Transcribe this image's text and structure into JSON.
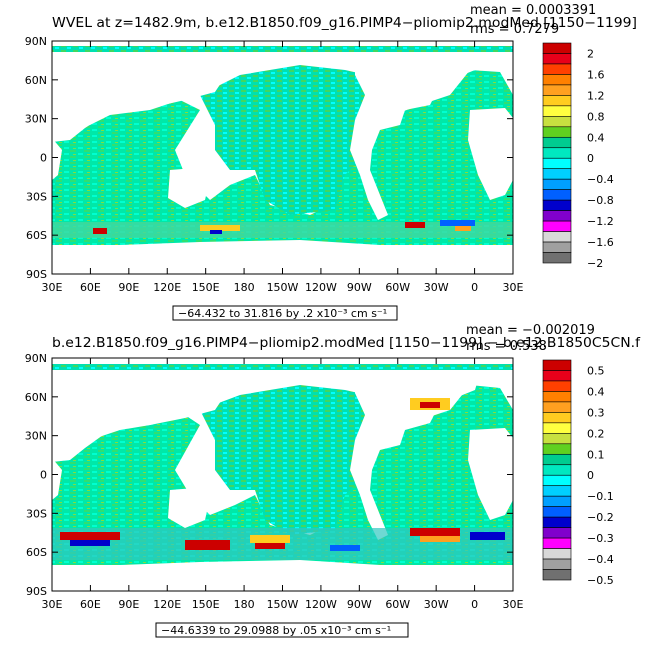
{
  "chart_data": [
    {
      "type": "heatmap",
      "title": "WVEL at z=1482.9m, b.e12.B1850.f09_g16.PIMP4−pliomip2.modMed [1150−1199]",
      "stats": {
        "mean": "mean = 0.0003391",
        "rms": "rms = 0.7279"
      },
      "x_ticks": [
        "30E",
        "60E",
        "90E",
        "120E",
        "150E",
        "180",
        "150W",
        "120W",
        "90W",
        "60W",
        "30W",
        "0",
        "30E"
      ],
      "y_ticks": [
        "90N",
        "60N",
        "30N",
        "0",
        "30S",
        "60S",
        "90S"
      ],
      "range_label": "−64.432 to 31.816 by .2 x10⁻³ cm s⁻¹",
      "colorbar": {
        "labels": [
          "2",
          "1.6",
          "1.2",
          "0.8",
          "0.4",
          "0",
          "−0.4",
          "−0.8",
          "−1.2",
          "−1.6",
          "−2"
        ],
        "colors": [
          "#cc0000",
          "#e8001a",
          "#ff4000",
          "#ff8000",
          "#ffa020",
          "#ffcc20",
          "#ffff40",
          "#c8e040",
          "#60d020",
          "#00cc90",
          "#00e8c0",
          "#00ffff",
          "#00d0ff",
          "#00a0ff",
          "#0060ff",
          "#0000cc",
          "#8000cc",
          "#ff00ff",
          "#d8d8d8",
          "#a0a0a0",
          "#707070"
        ]
      }
    },
    {
      "type": "heatmap",
      "title": "b.e12.B1850.f09_g16.PIMP4−pliomip2.modMed [1150−1199] − b.e12.B1850C5CN.f",
      "stats": {
        "mean": "mean = −0.002019",
        "rms": "rms = 0.538"
      },
      "x_ticks": [
        "30E",
        "60E",
        "90E",
        "120E",
        "150E",
        "180",
        "150W",
        "120W",
        "90W",
        "60W",
        "30W",
        "0",
        "30E"
      ],
      "y_ticks": [
        "90N",
        "60N",
        "30N",
        "0",
        "30S",
        "60S",
        "90S"
      ],
      "range_label": "−44.6339 to 29.0988 by .05 x10⁻³ cm s⁻¹",
      "colorbar": {
        "labels": [
          "0.5",
          "0.4",
          "0.3",
          "0.2",
          "0.1",
          "0",
          "−0.1",
          "−0.2",
          "−0.3",
          "−0.4",
          "−0.5"
        ],
        "colors": [
          "#cc0000",
          "#e8001a",
          "#ff4000",
          "#ff8000",
          "#ffa020",
          "#ffcc20",
          "#ffff40",
          "#c8e040",
          "#60d020",
          "#00cc90",
          "#00e8c0",
          "#00ffff",
          "#00d0ff",
          "#00a0ff",
          "#0060ff",
          "#0000cc",
          "#8000cc",
          "#ff00ff",
          "#d8d8d8",
          "#a0a0a0",
          "#707070"
        ]
      }
    }
  ]
}
